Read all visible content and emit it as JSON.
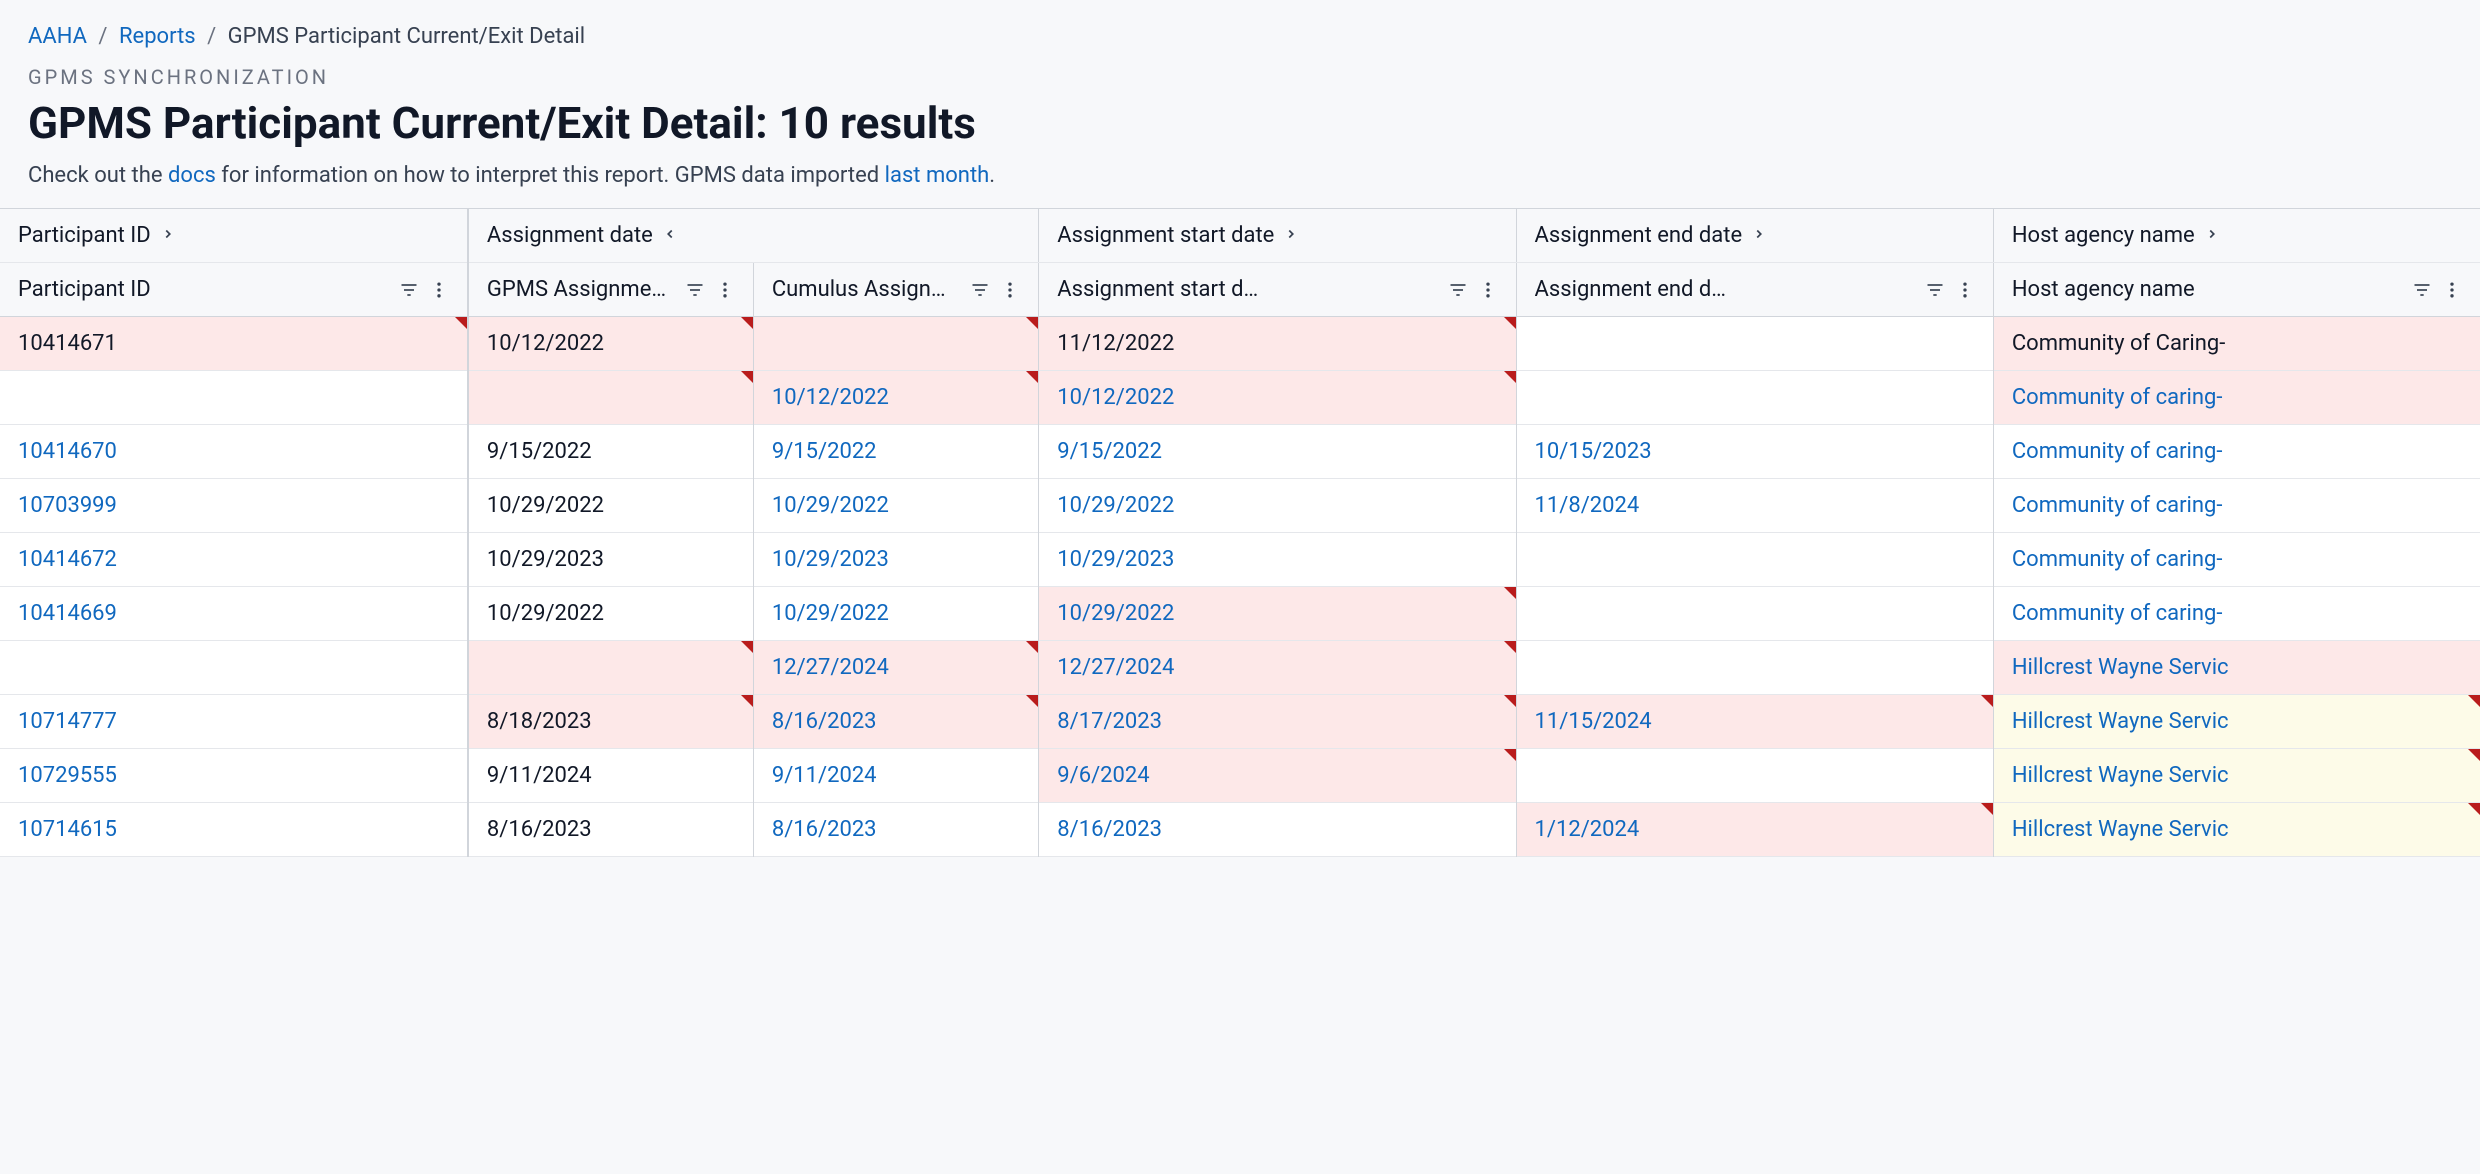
{
  "breadcrumb": {
    "root": "AAHA",
    "mid": "Reports",
    "current": "GPMS Participant Current/Exit Detail"
  },
  "overline": "GPMS SYNCHRONIZATION",
  "title": "GPMS Participant Current/Exit Detail: 10 results",
  "subtitle_pre": "Check out the ",
  "subtitle_docs": "docs",
  "subtitle_mid": " for information on how to interpret this report. GPMS data imported ",
  "subtitle_lastmonth": "last month",
  "subtitle_post": ".",
  "group_headers": [
    {
      "label": "Participant ID",
      "chevron": "right",
      "span": 1
    },
    {
      "label": "Assignment date",
      "chevron": "left",
      "span": 2
    },
    {
      "label": "Assignment start date",
      "chevron": "right",
      "span": 1
    },
    {
      "label": "Assignment end date",
      "chevron": "right",
      "span": 1
    },
    {
      "label": "Host agency name",
      "chevron": "right",
      "span": 1
    }
  ],
  "columns": [
    {
      "label": "Participant ID"
    },
    {
      "label": "GPMS Assignment date"
    },
    {
      "label": "Cumulus Assignment date"
    },
    {
      "label": "Assignment start d…"
    },
    {
      "label": "Assignment end d…"
    },
    {
      "label": "Host agency name"
    }
  ],
  "rows": [
    {
      "cells": [
        {
          "text": "10414671",
          "link": false,
          "hl": "pink",
          "marker": true
        },
        {
          "text": "10/12/2022",
          "link": false,
          "hl": "pink",
          "marker": true
        },
        {
          "text": "",
          "link": false,
          "hl": "pink",
          "marker": true
        },
        {
          "text": "11/12/2022",
          "link": false,
          "hl": "pink",
          "marker": true
        },
        {
          "text": "",
          "link": false,
          "hl": null,
          "marker": false
        },
        {
          "text": "Community of Caring-",
          "link": false,
          "hl": "pink",
          "marker": false
        }
      ]
    },
    {
      "cells": [
        {
          "text": "",
          "link": false,
          "hl": null,
          "marker": false
        },
        {
          "text": "",
          "link": false,
          "hl": "pink",
          "marker": true
        },
        {
          "text": "10/12/2022",
          "link": true,
          "hl": "pink",
          "marker": true
        },
        {
          "text": "10/12/2022",
          "link": true,
          "hl": "pink",
          "marker": true
        },
        {
          "text": "",
          "link": false,
          "hl": null,
          "marker": false
        },
        {
          "text": "Community of caring-",
          "link": true,
          "hl": "pink",
          "marker": false
        }
      ]
    },
    {
      "cells": [
        {
          "text": "10414670",
          "link": true,
          "hl": null,
          "marker": false
        },
        {
          "text": "9/15/2022",
          "link": false,
          "hl": null,
          "marker": false
        },
        {
          "text": "9/15/2022",
          "link": true,
          "hl": null,
          "marker": false
        },
        {
          "text": "9/15/2022",
          "link": true,
          "hl": null,
          "marker": false
        },
        {
          "text": "10/15/2023",
          "link": true,
          "hl": null,
          "marker": false
        },
        {
          "text": "Community of caring-",
          "link": true,
          "hl": null,
          "marker": false
        }
      ]
    },
    {
      "cells": [
        {
          "text": "10703999",
          "link": true,
          "hl": null,
          "marker": false
        },
        {
          "text": "10/29/2022",
          "link": false,
          "hl": null,
          "marker": false
        },
        {
          "text": "10/29/2022",
          "link": true,
          "hl": null,
          "marker": false
        },
        {
          "text": "10/29/2022",
          "link": true,
          "hl": null,
          "marker": false
        },
        {
          "text": "11/8/2024",
          "link": true,
          "hl": null,
          "marker": false
        },
        {
          "text": "Community of caring-",
          "link": true,
          "hl": null,
          "marker": false
        }
      ]
    },
    {
      "cells": [
        {
          "text": "10414672",
          "link": true,
          "hl": null,
          "marker": false
        },
        {
          "text": "10/29/2023",
          "link": false,
          "hl": null,
          "marker": false
        },
        {
          "text": "10/29/2023",
          "link": true,
          "hl": null,
          "marker": false
        },
        {
          "text": "10/29/2023",
          "link": true,
          "hl": null,
          "marker": false
        },
        {
          "text": "",
          "link": false,
          "hl": null,
          "marker": false
        },
        {
          "text": "Community of caring-",
          "link": true,
          "hl": null,
          "marker": false
        }
      ]
    },
    {
      "cells": [
        {
          "text": "10414669",
          "link": true,
          "hl": null,
          "marker": false
        },
        {
          "text": "10/29/2022",
          "link": false,
          "hl": null,
          "marker": false
        },
        {
          "text": "10/29/2022",
          "link": true,
          "hl": null,
          "marker": false
        },
        {
          "text": "10/29/2022",
          "link": true,
          "hl": "pink",
          "marker": true
        },
        {
          "text": "",
          "link": false,
          "hl": null,
          "marker": false
        },
        {
          "text": "Community of caring-",
          "link": true,
          "hl": null,
          "marker": false
        }
      ]
    },
    {
      "cells": [
        {
          "text": "",
          "link": false,
          "hl": null,
          "marker": false
        },
        {
          "text": "",
          "link": false,
          "hl": "pink",
          "marker": true
        },
        {
          "text": "12/27/2024",
          "link": true,
          "hl": "pink",
          "marker": true
        },
        {
          "text": "12/27/2024",
          "link": true,
          "hl": "pink",
          "marker": true
        },
        {
          "text": "",
          "link": false,
          "hl": null,
          "marker": false
        },
        {
          "text": "Hillcrest Wayne Servic",
          "link": true,
          "hl": "pink",
          "marker": false
        }
      ]
    },
    {
      "cells": [
        {
          "text": "10714777",
          "link": true,
          "hl": null,
          "marker": false
        },
        {
          "text": "8/18/2023",
          "link": false,
          "hl": "pink",
          "marker": true
        },
        {
          "text": "8/16/2023",
          "link": true,
          "hl": "pink",
          "marker": true
        },
        {
          "text": "8/17/2023",
          "link": true,
          "hl": "pink",
          "marker": true
        },
        {
          "text": "11/15/2024",
          "link": true,
          "hl": "pink",
          "marker": true
        },
        {
          "text": "Hillcrest Wayne Servic",
          "link": true,
          "hl": "yellow",
          "marker": true
        }
      ]
    },
    {
      "cells": [
        {
          "text": "10729555",
          "link": true,
          "hl": null,
          "marker": false
        },
        {
          "text": "9/11/2024",
          "link": false,
          "hl": null,
          "marker": false
        },
        {
          "text": "9/11/2024",
          "link": true,
          "hl": null,
          "marker": false
        },
        {
          "text": "9/6/2024",
          "link": true,
          "hl": "pink",
          "marker": true
        },
        {
          "text": "",
          "link": false,
          "hl": null,
          "marker": false
        },
        {
          "text": "Hillcrest Wayne Servic",
          "link": true,
          "hl": "yellow",
          "marker": true
        }
      ]
    },
    {
      "cells": [
        {
          "text": "10714615",
          "link": true,
          "hl": null,
          "marker": false
        },
        {
          "text": "8/16/2023",
          "link": false,
          "hl": null,
          "marker": false
        },
        {
          "text": "8/16/2023",
          "link": true,
          "hl": null,
          "marker": false
        },
        {
          "text": "8/16/2023",
          "link": true,
          "hl": null,
          "marker": false
        },
        {
          "text": "1/12/2024",
          "link": true,
          "hl": "pink",
          "marker": true
        },
        {
          "text": "Hillcrest Wayne Servic",
          "link": true,
          "hl": "yellow",
          "marker": true
        }
      ]
    }
  ],
  "colors": {
    "link": "#1068bf",
    "pink": "#fde8e8",
    "yellow": "#fdfbe8",
    "marker": "#b91c1c",
    "bg": "#f7f8fa",
    "text": "#111827",
    "border": "#d1d5db"
  }
}
